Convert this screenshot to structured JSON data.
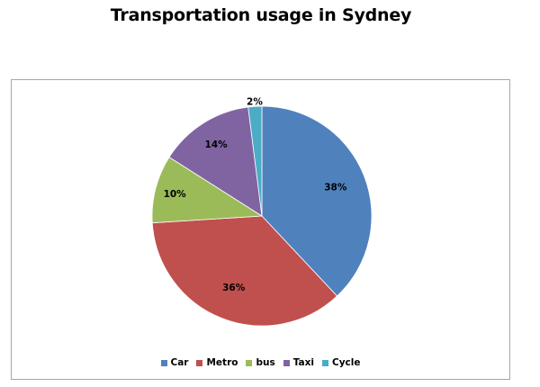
{
  "chart_data": {
    "type": "pie",
    "title": "Transportation usage in Sydney",
    "categories": [
      "Car",
      "Metro",
      "bus",
      "Taxi",
      "Cycle"
    ],
    "values": [
      38,
      36,
      10,
      14,
      2
    ],
    "data_labels": [
      "38%",
      "36%",
      "10%",
      "14%",
      "2%"
    ],
    "colors": [
      "#4f81bd",
      "#c0504d",
      "#9bbb59",
      "#8064a2",
      "#4bacc6"
    ],
    "legend_position": "bottom"
  }
}
